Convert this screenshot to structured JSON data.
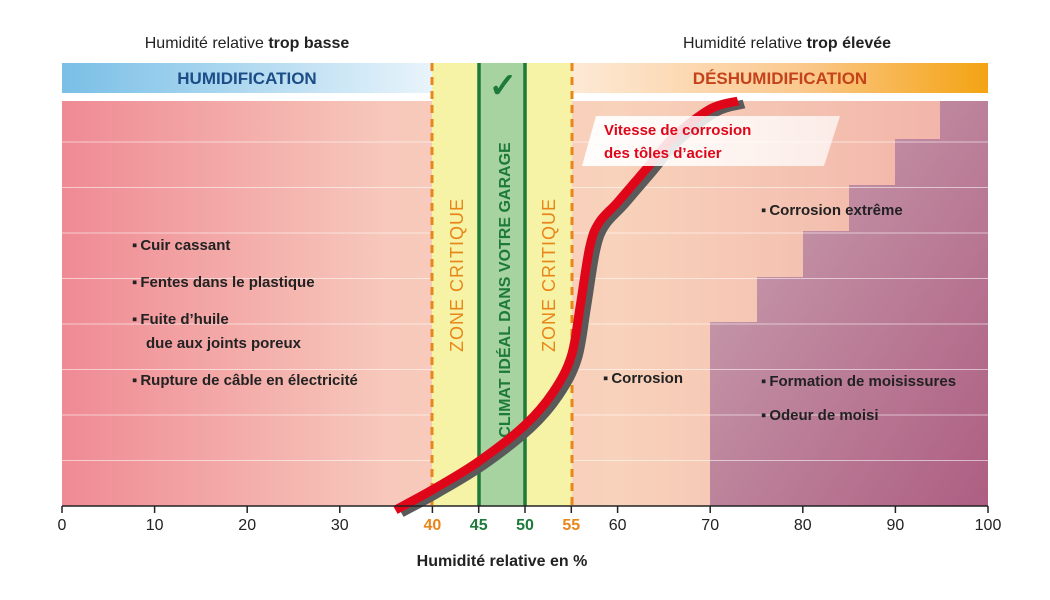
{
  "top_labels": {
    "low": {
      "prefix": "Humidité relative ",
      "bold": "trop basse"
    },
    "high": {
      "prefix": "Humidité relative ",
      "bold": "trop élevée"
    }
  },
  "bands": {
    "humidification": "HUMIDIFICATION",
    "dehumidification": "DÉSHUMIDIFICATION"
  },
  "zones": {
    "critical_label": "ZONE CRITIQUE",
    "ideal_label": "CLIMAT IDÉAL DANS VOTRE GARAGE",
    "check_symbol": "✓"
  },
  "curve_label": [
    "Vitesse de corrosion",
    "des tôles d’acier"
  ],
  "annotations_left": [
    {
      "lines": [
        "Cuir cassant"
      ]
    },
    {
      "lines": [
        "Fentes dans le plastique"
      ]
    },
    {
      "lines": [
        "Fuite d’huile",
        "due aux joints poreux"
      ]
    },
    {
      "lines": [
        "Rupture de câble en électricité"
      ]
    }
  ],
  "annotations_right": {
    "corrosion": "Corrosion",
    "corrosion_extreme": "Corrosion extrême",
    "moisissures": "Formation de moisissures",
    "odeur": "Odeur de moisi"
  },
  "colors": {
    "curve": "#e0061a",
    "critical_line": "#e8861a",
    "ideal_line": "#1e7a3a",
    "critical_fill": "#f6f3a6",
    "ideal_fill": "#a6d3a0",
    "humidification_text": "#1c4d86",
    "dehumidification_text": "#c4431b"
  },
  "chart_data": {
    "type": "line",
    "xlabel": "Humidité relative en %",
    "ylabel": "",
    "xlim": [
      0,
      100
    ],
    "xticks": [
      0,
      10,
      20,
      30,
      40,
      45,
      50,
      55,
      60,
      70,
      80,
      90,
      100
    ],
    "highlight_ticks": {
      "40": "#e8861a",
      "45": "#1e7a3a",
      "50": "#1e7a3a",
      "55": "#e8861a"
    },
    "zones": [
      {
        "name": "ZONE CRITIQUE",
        "from": 40,
        "to": 45
      },
      {
        "name": "CLIMAT IDÉAL DANS VOTRE GARAGE",
        "from": 45,
        "to": 50
      },
      {
        "name": "ZONE CRITIQUE",
        "from": 50,
        "to": 55
      }
    ],
    "series": [
      {
        "name": "Vitesse de corrosion des tôles d’acier",
        "x": [
          36,
          40,
          45,
          50,
          53,
          55,
          56,
          57,
          58,
          60,
          63,
          66,
          70,
          73
        ],
        "y": [
          0.0,
          0.04,
          0.11,
          0.2,
          0.28,
          0.37,
          0.5,
          0.64,
          0.7,
          0.75,
          0.83,
          0.91,
          0.98,
          1.0
        ]
      }
    ]
  }
}
